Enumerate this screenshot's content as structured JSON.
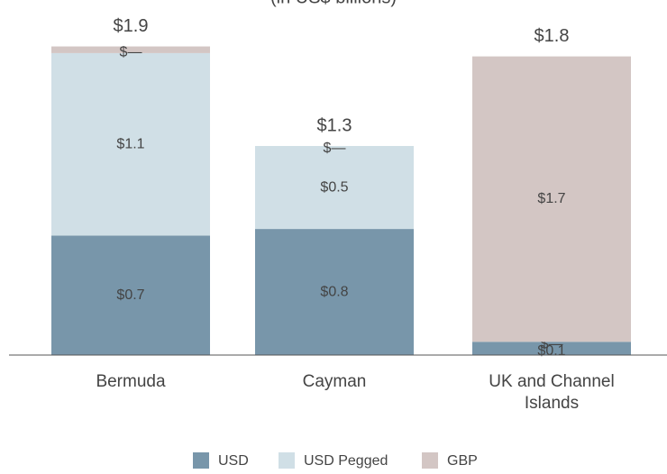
{
  "chart_data": {
    "type": "stacked_bar",
    "subtitle": "(in US$ billions)",
    "categories": [
      "Bermuda",
      "Cayman",
      "UK and Channel Islands"
    ],
    "series": [
      {
        "name": "USD",
        "color": "#7896aa",
        "values": [
          0.72,
          0.76,
          0.08
        ],
        "value_labels": [
          "$0.7",
          "$0.8",
          "$0.1"
        ]
      },
      {
        "name": "USD Pegged",
        "color": "#d0dfe6",
        "values": [
          1.1,
          0.5,
          0
        ],
        "value_labels": [
          "$1.1",
          "$0.5",
          "$—"
        ]
      },
      {
        "name": "GBP",
        "color": "#d3c6c4",
        "values": [
          0.04,
          0,
          1.72
        ],
        "value_labels": [
          "$—",
          "$—",
          "$1.7"
        ]
      }
    ],
    "totals": {
      "values": [
        1.9,
        1.3,
        1.8
      ],
      "value_labels": [
        "$1.9",
        "$1.3",
        "$1.8"
      ]
    },
    "ylim": [
      0,
      2.14
    ],
    "legend": "bottom"
  }
}
